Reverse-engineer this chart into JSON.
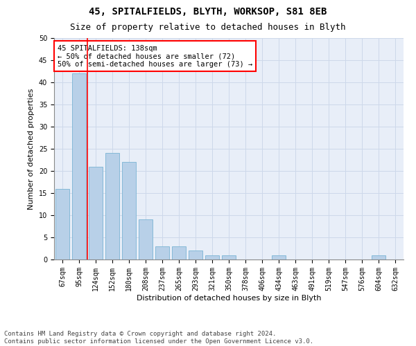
{
  "title1": "45, SPITALFIELDS, BLYTH, WORKSOP, S81 8EB",
  "title2": "Size of property relative to detached houses in Blyth",
  "xlabel": "Distribution of detached houses by size in Blyth",
  "ylabel": "Number of detached properties",
  "categories": [
    "67sqm",
    "95sqm",
    "124sqm",
    "152sqm",
    "180sqm",
    "208sqm",
    "237sqm",
    "265sqm",
    "293sqm",
    "321sqm",
    "350sqm",
    "378sqm",
    "406sqm",
    "434sqm",
    "463sqm",
    "491sqm",
    "519sqm",
    "547sqm",
    "576sqm",
    "604sqm",
    "632sqm"
  ],
  "values": [
    16,
    42,
    21,
    24,
    22,
    9,
    3,
    3,
    2,
    1,
    1,
    0,
    0,
    1,
    0,
    0,
    0,
    0,
    0,
    1,
    0
  ],
  "bar_color": "#b8d0e8",
  "bar_edge_color": "#7ab4d4",
  "red_line_x": 1.5,
  "annotation_text": "45 SPITALFIELDS: 138sqm\n← 50% of detached houses are smaller (72)\n50% of semi-detached houses are larger (73) →",
  "annotation_box_color": "white",
  "annotation_box_edge_color": "red",
  "ylim": [
    0,
    50
  ],
  "yticks": [
    0,
    5,
    10,
    15,
    20,
    25,
    30,
    35,
    40,
    45,
    50
  ],
  "grid_color": "#cdd8ea",
  "background_color": "#e8eef8",
  "footer_text": "Contains HM Land Registry data © Crown copyright and database right 2024.\nContains public sector information licensed under the Open Government Licence v3.0.",
  "title1_fontsize": 10,
  "title2_fontsize": 9,
  "xlabel_fontsize": 8,
  "ylabel_fontsize": 8,
  "tick_fontsize": 7,
  "annotation_fontsize": 7.5,
  "footer_fontsize": 6.5
}
